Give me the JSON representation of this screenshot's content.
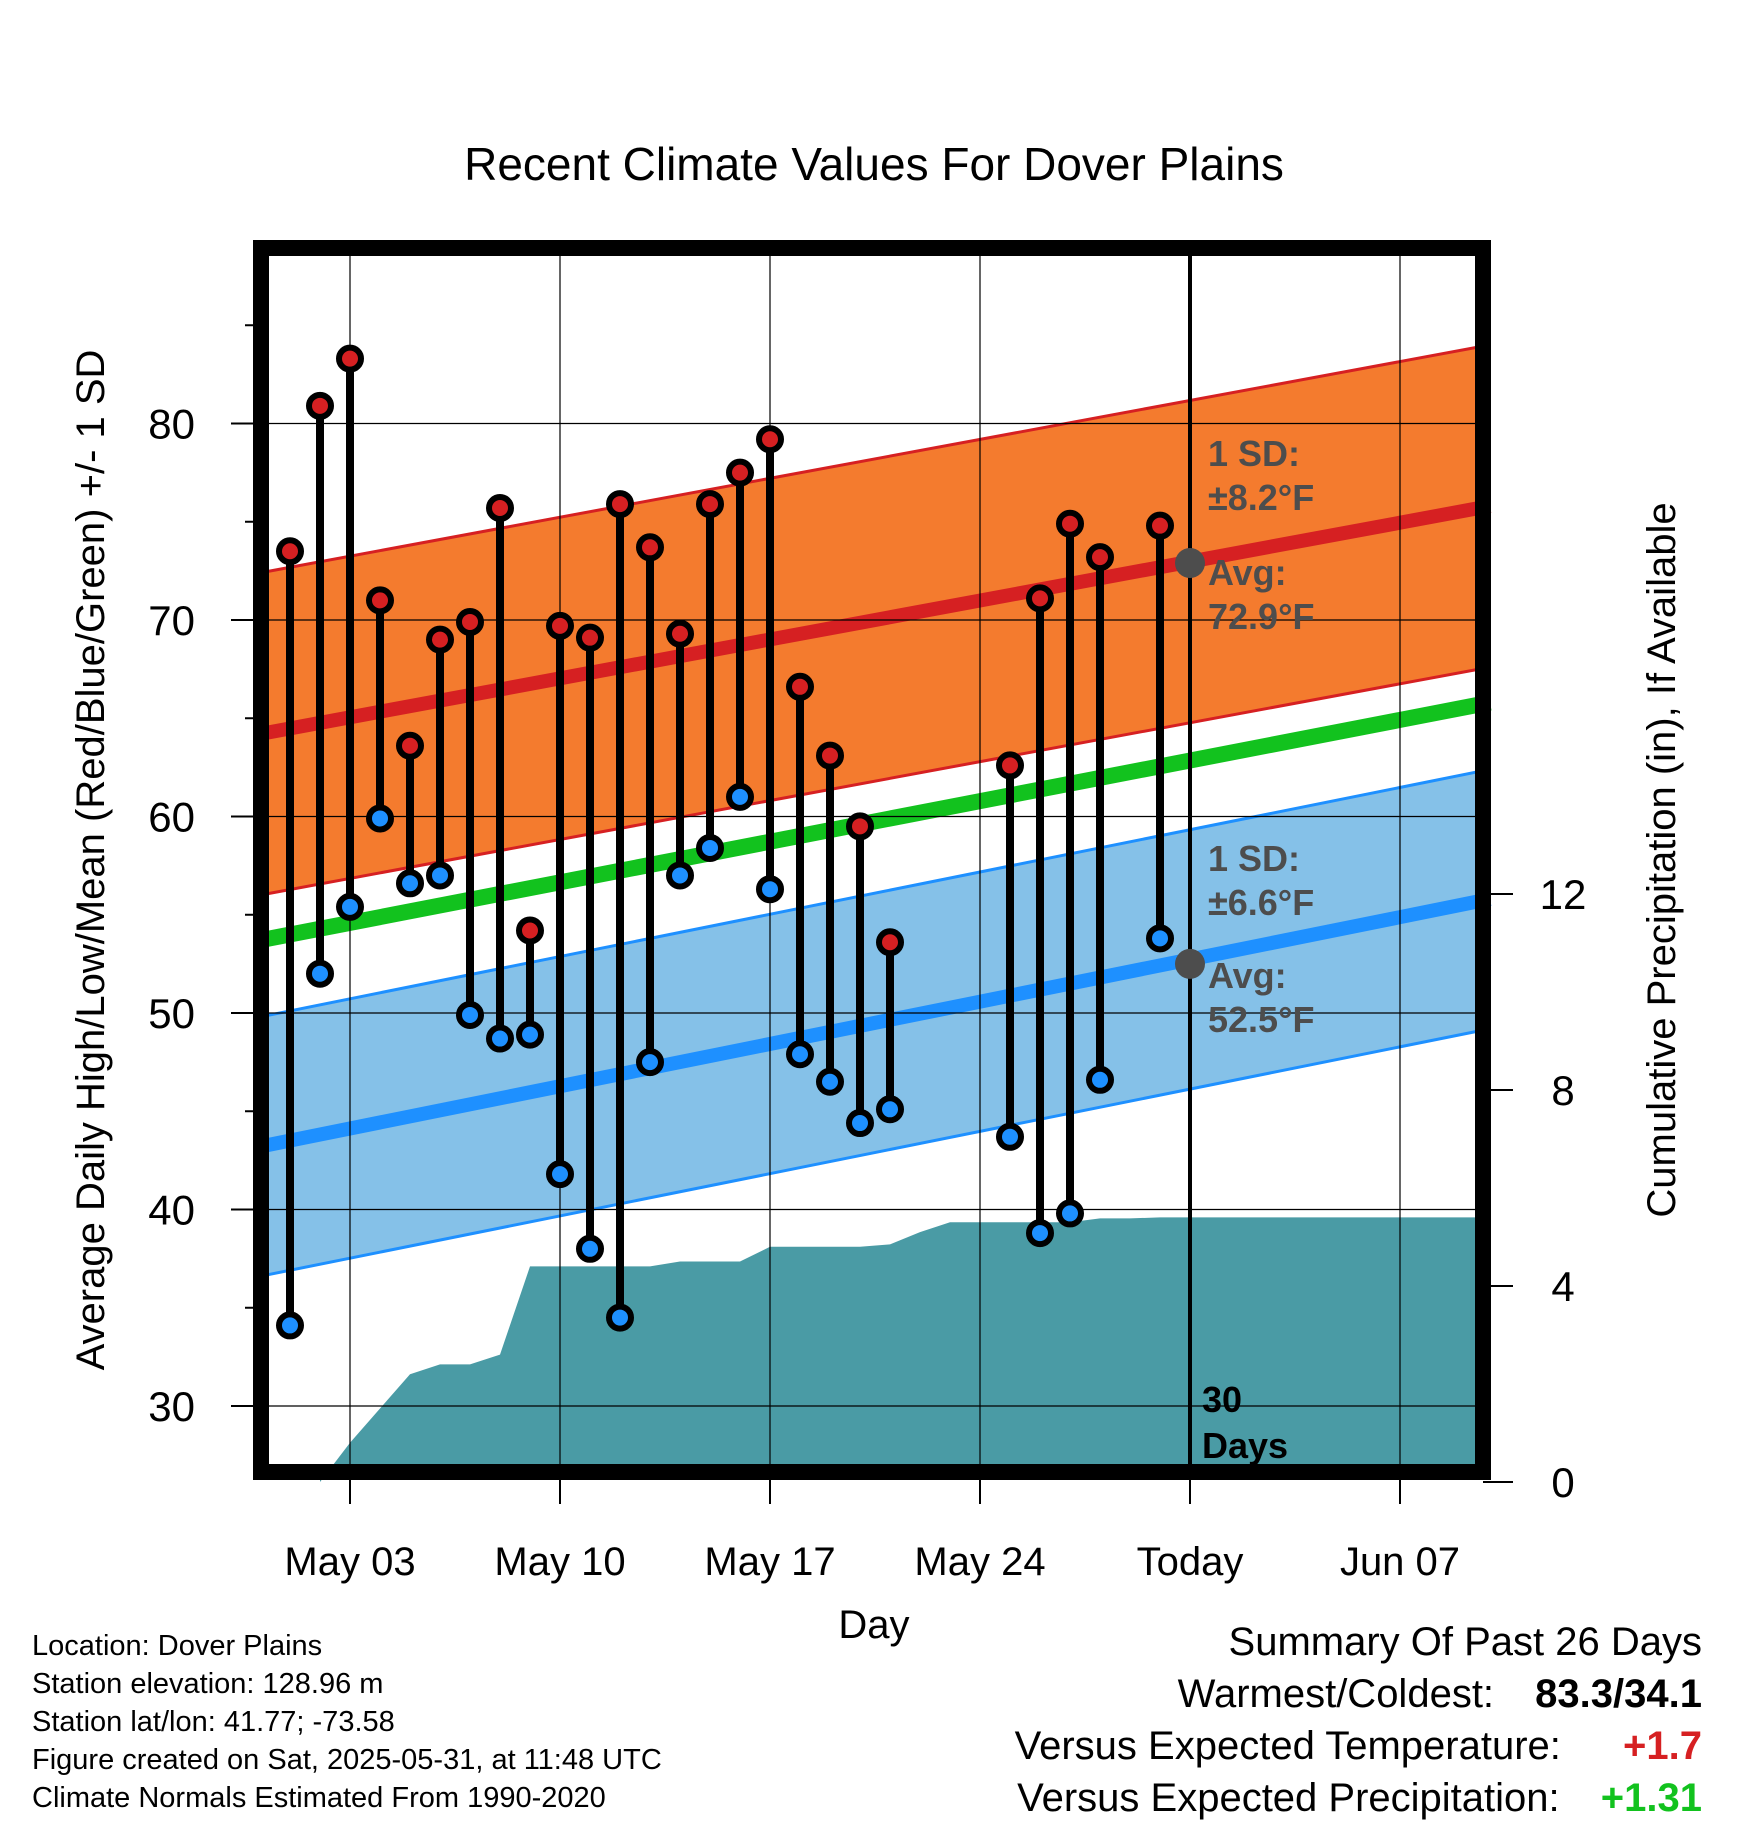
{
  "chart_data": {
    "type": "line",
    "title": "Recent Climate Values For Dover Plains",
    "xlabel": "Day",
    "ylabel": "Average Daily High/Low/Mean (Red/Blue/Green) +/- 1 SD",
    "y2label": "Cumulative Precipitation (in), If Available",
    "x_tick_labels": [
      "May 03",
      "May 10",
      "May 17",
      "May 24",
      "Today",
      "Jun 07"
    ],
    "x_tick_days": [
      3,
      10,
      17,
      24,
      31,
      38
    ],
    "x_range_days": [
      0,
      41
    ],
    "ylim": [
      26,
      88
    ],
    "y_ticks": [
      30,
      40,
      50,
      60,
      70,
      80
    ],
    "y2lim": [
      0,
      30
    ],
    "y2_ticks": [
      0,
      4,
      8,
      12
    ],
    "today_day": 31,
    "today_label": [
      "30",
      "Days"
    ],
    "normals": {
      "high_avg": [
        64.2,
        75.8
      ],
      "high_sd": 8.2,
      "low_avg": [
        43.2,
        55.8
      ],
      "low_sd": 6.6,
      "mean_avg": [
        53.7,
        65.8
      ]
    },
    "annotations": {
      "high_sd_text": [
        "1 SD:",
        "±8.2°F"
      ],
      "high_avg_text": [
        "Avg:",
        "72.9°F"
      ],
      "high_avg_value": 72.9,
      "low_sd_text": [
        "1 SD:",
        "±6.6°F"
      ],
      "low_avg_text": [
        "Avg:",
        "52.5°F"
      ],
      "low_avg_value": 52.5
    },
    "daily": [
      {
        "day": 1,
        "high": 73.5,
        "low": 34.1
      },
      {
        "day": 2,
        "high": 80.9,
        "low": 52.0
      },
      {
        "day": 3,
        "high": 83.3,
        "low": 55.4
      },
      {
        "day": 4,
        "high": 71.0,
        "low": 59.9
      },
      {
        "day": 5,
        "high": 63.6,
        "low": 56.6
      },
      {
        "day": 6,
        "high": 69.0,
        "low": 57.0
      },
      {
        "day": 7,
        "high": 69.9,
        "low": 49.9
      },
      {
        "day": 8,
        "high": 75.7,
        "low": 48.7
      },
      {
        "day": 9,
        "high": 54.2,
        "low": 48.9
      },
      {
        "day": 10,
        "high": 69.7,
        "low": 41.8
      },
      {
        "day": 11,
        "high": 69.1,
        "low": 38.0
      },
      {
        "day": 12,
        "high": 75.9,
        "low": 34.5
      },
      {
        "day": 13,
        "high": 73.7,
        "low": 47.5
      },
      {
        "day": 14,
        "high": 69.3,
        "low": 57.0
      },
      {
        "day": 15,
        "high": 75.9,
        "low": 58.4
      },
      {
        "day": 16,
        "high": 77.5,
        "low": 61.0
      },
      {
        "day": 17,
        "high": 79.2,
        "low": 56.3
      },
      {
        "day": 18,
        "high": 66.6,
        "low": 47.9
      },
      {
        "day": 19,
        "high": 63.1,
        "low": 46.5
      },
      {
        "day": 20,
        "high": 59.5,
        "low": 44.4
      },
      {
        "day": 21,
        "high": 53.6,
        "low": 45.1
      },
      {
        "day": 25,
        "high": 62.6,
        "low": 43.7
      },
      {
        "day": 26,
        "high": 71.1,
        "low": 38.8
      },
      {
        "day": 27,
        "high": 74.9,
        "low": 39.8
      },
      {
        "day": 28,
        "high": 73.2,
        "low": 46.6
      },
      {
        "day": 30,
        "high": 74.8,
        "low": 53.8
      }
    ],
    "cumulative_precip": [
      {
        "day": 2,
        "value": 0.0
      },
      {
        "day": 3,
        "value": 0.8
      },
      {
        "day": 4,
        "value": 1.5
      },
      {
        "day": 5,
        "value": 2.2
      },
      {
        "day": 6,
        "value": 2.4
      },
      {
        "day": 7,
        "value": 2.4
      },
      {
        "day": 8,
        "value": 2.6
      },
      {
        "day": 9,
        "value": 4.4
      },
      {
        "day": 10,
        "value": 4.4
      },
      {
        "day": 11,
        "value": 4.4
      },
      {
        "day": 12,
        "value": 4.4
      },
      {
        "day": 13,
        "value": 4.4
      },
      {
        "day": 14,
        "value": 4.5
      },
      {
        "day": 15,
        "value": 4.5
      },
      {
        "day": 16,
        "value": 4.5
      },
      {
        "day": 17,
        "value": 4.8
      },
      {
        "day": 18,
        "value": 4.8
      },
      {
        "day": 19,
        "value": 4.8
      },
      {
        "day": 20,
        "value": 4.8
      },
      {
        "day": 21,
        "value": 4.85
      },
      {
        "day": 22,
        "value": 5.1
      },
      {
        "day": 23,
        "value": 5.3
      },
      {
        "day": 24,
        "value": 5.3
      },
      {
        "day": 25,
        "value": 5.3
      },
      {
        "day": 26,
        "value": 5.3
      },
      {
        "day": 27,
        "value": 5.3
      },
      {
        "day": 28,
        "value": 5.38
      },
      {
        "day": 29,
        "value": 5.38
      },
      {
        "day": 30,
        "value": 5.4
      },
      {
        "day": 31,
        "value": 5.4
      },
      {
        "day": 41,
        "value": 5.4
      }
    ],
    "colors": {
      "high": "#d62022",
      "low": "#1e90ff",
      "mean": "#12c21e",
      "high_band": "#f47b2e",
      "low_band": "#85c1e8",
      "precip": "#4a9ba5",
      "annotation": "#4d4d4d"
    }
  },
  "footer": {
    "location": "Location: Dover Plains",
    "elevation": "Station elevation: 128.96 m",
    "latlon": "Station lat/lon: 41.77; -73.58",
    "created": "Figure created on Sat, 2025-05-31, at 11:48 UTC",
    "normals": "Climate Normals Estimated From 1990-2020"
  },
  "summary": {
    "title": "Summary Of Past 26 Days",
    "warmest_label": "Warmest/Coldest:",
    "warmest_value": "83.3/34.1",
    "temp_label": "Versus Expected Temperature:",
    "temp_value": "+1.7",
    "precip_label": "Versus Expected Precipitation:",
    "precip_value": "+1.31",
    "colors": {
      "temp": "#d62022",
      "precip": "#12c21e"
    }
  }
}
